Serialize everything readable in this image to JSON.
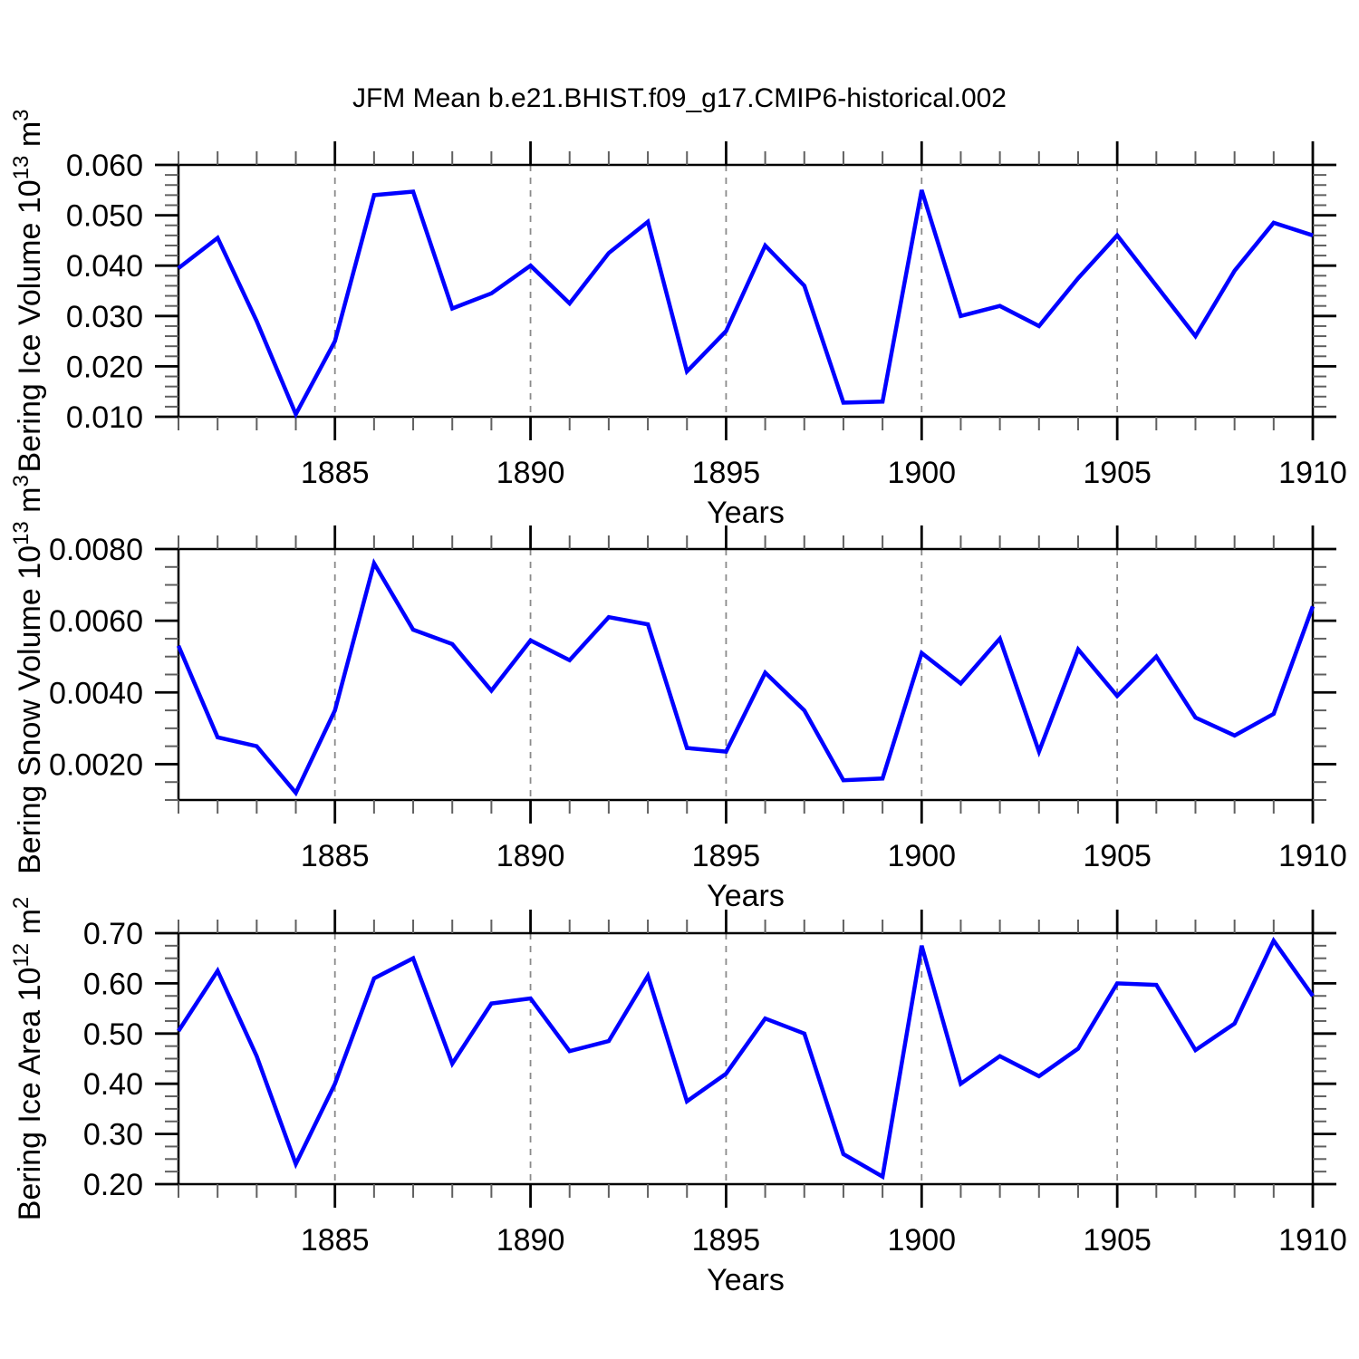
{
  "title": "JFM Mean b.e21.BHIST.f09_g17.CMIP6-historical.002",
  "colors": {
    "line": "#0000ff",
    "axis": "#000000",
    "grid": "#8a8a8a",
    "minor_tick": "#606060",
    "text": "#000000",
    "background": "#ffffff"
  },
  "chart_data": [
    {
      "type": "line",
      "name": "bering-ice-volume",
      "ylabel_text": "Bering Ice Volume 10^13 m^3",
      "ylabel_segments": [
        {
          "t": "Bering Ice Volume 10"
        },
        {
          "t": "13",
          "sup": true
        },
        {
          "t": " m"
        },
        {
          "t": "3",
          "sup": true
        }
      ],
      "xlabel": "Years",
      "xlim": [
        1881,
        1910
      ],
      "ylim": [
        0.01,
        0.06
      ],
      "x": [
        1881,
        1882,
        1883,
        1884,
        1885,
        1886,
        1887,
        1888,
        1889,
        1890,
        1891,
        1892,
        1893,
        1894,
        1895,
        1896,
        1897,
        1898,
        1899,
        1900,
        1901,
        1902,
        1903,
        1904,
        1905,
        1906,
        1907,
        1908,
        1909,
        1910
      ],
      "values": [
        0.0395,
        0.0455,
        0.029,
        0.0105,
        0.025,
        0.054,
        0.0547,
        0.0315,
        0.0345,
        0.04,
        0.0325,
        0.0425,
        0.0487,
        0.019,
        0.027,
        0.044,
        0.036,
        0.0128,
        0.013,
        0.055,
        0.03,
        0.032,
        0.028,
        0.0375,
        0.046,
        0.036,
        0.026,
        0.039,
        0.0485,
        0.046
      ],
      "x_tick_labels": [
        "1885",
        "1890",
        "1895",
        "1900",
        "1905",
        "1910"
      ],
      "x_minor_step": 1,
      "y_tick_labels": [
        "0.010",
        "0.020",
        "0.030",
        "0.040",
        "0.050",
        "0.060"
      ],
      "y_minor_step": 0.002,
      "grid_years": [
        1885,
        1890,
        1895,
        1900,
        1905
      ],
      "grid_style": "dashed-vertical",
      "legend": "none"
    },
    {
      "type": "line",
      "name": "bering-snow-volume",
      "ylabel_text": "Bering Snow Volume 10^13 m^3",
      "ylabel_segments": [
        {
          "t": "Bering Snow Volume 10"
        },
        {
          "t": "13",
          "sup": true
        },
        {
          "t": " m"
        },
        {
          "t": "3",
          "sup": true
        }
      ],
      "xlabel": "Years",
      "xlim": [
        1881,
        1910
      ],
      "ylim": [
        0.001,
        0.008
      ],
      "x": [
        1881,
        1882,
        1883,
        1884,
        1885,
        1886,
        1887,
        1888,
        1889,
        1890,
        1891,
        1892,
        1893,
        1894,
        1895,
        1896,
        1897,
        1898,
        1899,
        1900,
        1901,
        1902,
        1903,
        1904,
        1905,
        1906,
        1907,
        1908,
        1909,
        1910
      ],
      "values": [
        0.0053,
        0.00275,
        0.0025,
        0.0012,
        0.0035,
        0.0076,
        0.00575,
        0.00535,
        0.00405,
        0.00545,
        0.0049,
        0.0061,
        0.0059,
        0.00245,
        0.00235,
        0.00455,
        0.0035,
        0.00155,
        0.0016,
        0.0051,
        0.00425,
        0.0055,
        0.00235,
        0.0052,
        0.0039,
        0.005,
        0.0033,
        0.0028,
        0.0034,
        0.0064
      ],
      "x_tick_labels": [
        "1885",
        "1890",
        "1895",
        "1900",
        "1905",
        "1910"
      ],
      "x_minor_step": 1,
      "y_tick_labels": [
        "0.0020",
        "0.0040",
        "0.0060",
        "0.0080"
      ],
      "y_minor_step": 0.0005,
      "grid_years": [
        1885,
        1890,
        1895,
        1900,
        1905
      ],
      "grid_style": "dashed-vertical",
      "legend": "none"
    },
    {
      "type": "line",
      "name": "bering-ice-area",
      "ylabel_text": "Bering Ice Area 10^12 m^2",
      "ylabel_segments": [
        {
          "t": "Bering Ice Area 10"
        },
        {
          "t": "12",
          "sup": true
        },
        {
          "t": " m"
        },
        {
          "t": "2",
          "sup": true
        }
      ],
      "xlabel": "Years",
      "xlim": [
        1881,
        1910
      ],
      "ylim": [
        0.2,
        0.7
      ],
      "x": [
        1881,
        1882,
        1883,
        1884,
        1885,
        1886,
        1887,
        1888,
        1889,
        1890,
        1891,
        1892,
        1893,
        1894,
        1895,
        1896,
        1897,
        1898,
        1899,
        1900,
        1901,
        1902,
        1903,
        1904,
        1905,
        1906,
        1907,
        1908,
        1909,
        1910
      ],
      "values": [
        0.505,
        0.625,
        0.455,
        0.24,
        0.4,
        0.61,
        0.65,
        0.44,
        0.56,
        0.57,
        0.465,
        0.485,
        0.615,
        0.365,
        0.42,
        0.53,
        0.5,
        0.26,
        0.215,
        0.675,
        0.4,
        0.455,
        0.415,
        0.47,
        0.6,
        0.597,
        0.467,
        0.52,
        0.685,
        0.575
      ],
      "x_tick_labels": [
        "1885",
        "1890",
        "1895",
        "1900",
        "1905",
        "1910"
      ],
      "x_minor_step": 1,
      "y_tick_labels": [
        "0.20",
        "0.30",
        "0.40",
        "0.50",
        "0.60",
        "0.70"
      ],
      "y_minor_step": 0.025,
      "grid_years": [
        1885,
        1890,
        1895,
        1900,
        1905
      ],
      "grid_style": "dashed-vertical",
      "legend": "none"
    }
  ]
}
